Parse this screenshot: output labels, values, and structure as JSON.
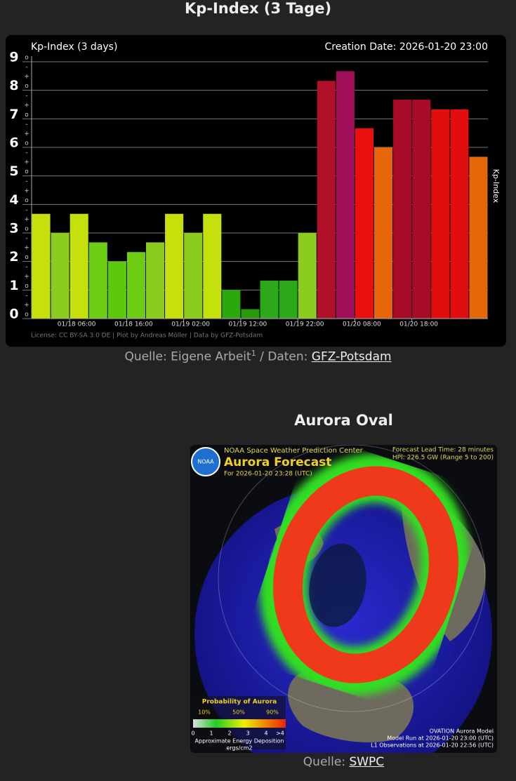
{
  "header": {
    "title": "Kp-Index (3 Tage)"
  },
  "chart_data": {
    "type": "bar",
    "title": "Kp-Index (3 days)",
    "subtitle": "Creation Date: 2026-01-20 23:00",
    "y_label": "Kp-Index",
    "footer": "License: CC BY-SA 3.0 DE | Plot by Andreas Möller | Data by GFZ-Potsdam",
    "categories": [
      null,
      null,
      "01/18 06:00",
      null,
      null,
      "01/18 16:00",
      null,
      null,
      "01/19 02:00",
      null,
      null,
      "01/19 12:00",
      null,
      null,
      "01/19 22:00",
      null,
      null,
      "01/20 08:00",
      null,
      null,
      "01/20 18:00",
      null,
      null,
      null
    ],
    "values": [
      3.67,
      3,
      3.67,
      2.67,
      2,
      2.33,
      2.67,
      3.67,
      3,
      3.67,
      1,
      0.33,
      1.33,
      1.33,
      3,
      8.33,
      8.67,
      6.67,
      6,
      7.67,
      7.67,
      7.33,
      7.33,
      5.67
    ],
    "colors": [
      "#c6e00c",
      "#8ccc1e",
      "#c6e00c",
      "#6ccd12",
      "#5cc80e",
      "#6ccd12",
      "#8ccc1e",
      "#c6e00c",
      "#8ccc1e",
      "#c6e00c",
      "#2aa80c",
      "#2a9a0a",
      "#2ca81a",
      "#2ca81a",
      "#8ccc1e",
      "#b0102a",
      "#a0105a",
      "#e8100e",
      "#e8660a",
      "#aa0a2a",
      "#aa0a2a",
      "#e00e0e",
      "#e00e0e",
      "#e8660a"
    ],
    "ylim": [
      0,
      9
    ],
    "yticks": [
      0,
      1,
      2,
      3,
      4,
      5,
      6,
      7,
      8,
      9
    ],
    "ysublabels": [
      "+",
      "o",
      "-"
    ],
    "grid": true
  },
  "kp_caption": {
    "prefix": "Quelle: Eigene Arbeit",
    "footnote": "1",
    "middle": " / Daten: ",
    "link": "GFZ-Potsdam"
  },
  "aurora": {
    "title": "Aurora Oval",
    "image": {
      "logo": "NOAA",
      "agency": "NOAA Space Weather Prediction Center",
      "heading": "Aurora Forecast",
      "for": "For 2026-01-20 23:28 (UTC)",
      "lead": "Forecast Lead Time: 28 minutes",
      "hpi": "HPI: 226.5 GW (Range 5 to 200)",
      "legend_title": "Probability of Aurora",
      "probabilities": [
        "10%",
        "50%",
        "90%"
      ],
      "energy": [
        "0",
        "1",
        "2",
        "3",
        "4",
        ">4"
      ],
      "energy_label": "Approximate Energy Deposition",
      "energy_unit": "ergs/cm2",
      "model": "OVATION Aurora Model",
      "model_run": "Model Run at 2026-01-20 23:00 (UTC)",
      "l1": "L1 Observations at 2026-01-20 22:56 (UTC)"
    },
    "caption": {
      "prefix": "Quelle: ",
      "link": "SWPC"
    }
  }
}
